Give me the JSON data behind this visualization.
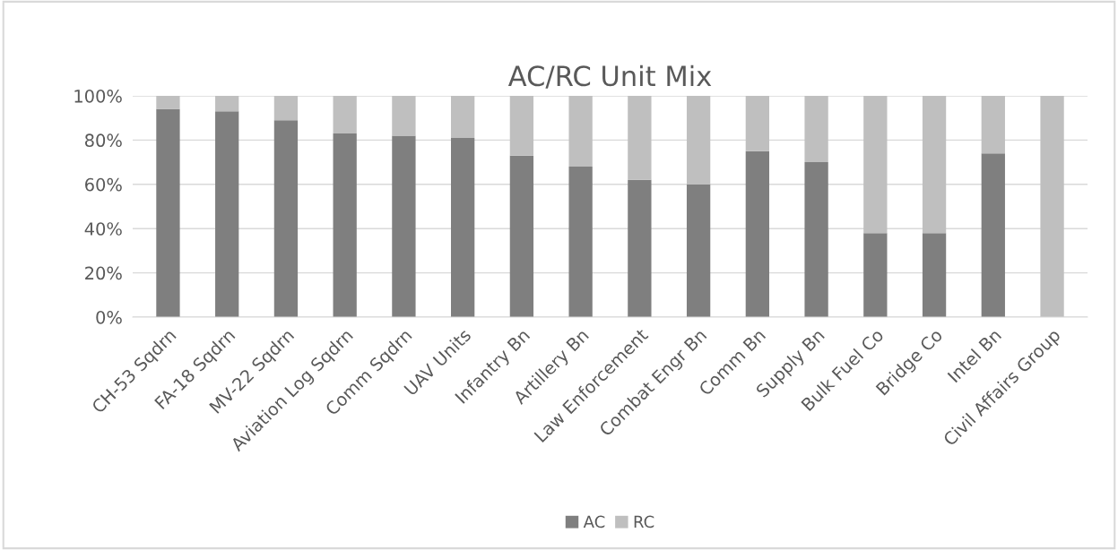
{
  "chart_data": {
    "type": "bar",
    "title": "AC/RC Unit Mix",
    "stacked": true,
    "categories": [
      "CH-53 Sqdrn",
      "FA-18 Sqdrn",
      "MV-22 Sqdrn",
      "Aviation Log Sqdrn",
      "Comm Sqdrn",
      "UAV Units",
      "Infantry Bn",
      "Artillery Bn",
      "Law Enforcement",
      "Combat Engr Bn",
      "Comm Bn",
      "Supply Bn",
      "Bulk Fuel Co",
      "Bridge Co",
      "Intel Bn",
      "Civil Affairs Group"
    ],
    "series": [
      {
        "name": "AC",
        "color": "#7f7f7f",
        "values": [
          94,
          93,
          89,
          83,
          82,
          81,
          73,
          68,
          62,
          60,
          75,
          70,
          38,
          38,
          74,
          0
        ]
      },
      {
        "name": "RC",
        "color": "#bfbfbf",
        "values": [
          6,
          7,
          11,
          17,
          18,
          19,
          27,
          32,
          38,
          40,
          25,
          30,
          62,
          62,
          26,
          100
        ]
      }
    ],
    "ylim": [
      0,
      100
    ],
    "yticks": [
      {
        "value": 0,
        "label": "0%"
      },
      {
        "value": 20,
        "label": "20%"
      },
      {
        "value": 40,
        "label": "40%"
      },
      {
        "value": 60,
        "label": "60%"
      },
      {
        "value": 80,
        "label": "80%"
      },
      {
        "value": 100,
        "label": "100%"
      }
    ],
    "grid": "y",
    "legend": "bottom"
  }
}
